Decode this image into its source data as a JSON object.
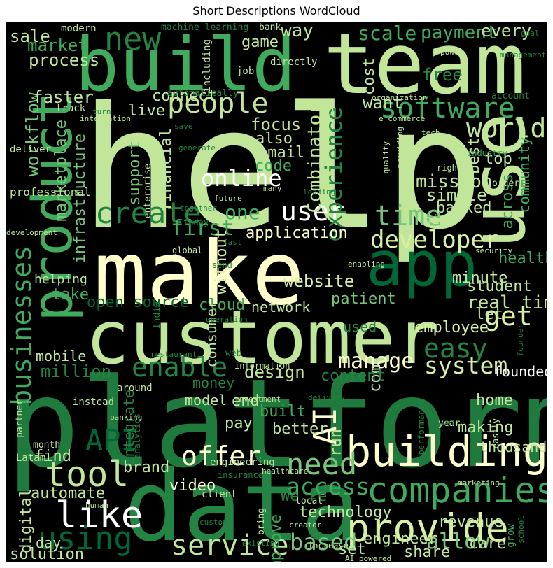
{
  "title": "Short Descriptions WordCloud",
  "colors": {
    "background": "#000000",
    "palette": [
      "#ffffcc",
      "#d9f0a3",
      "#addd8e",
      "#78c679",
      "#41ab5d",
      "#238443",
      "#005a32"
    ]
  },
  "words": [
    {
      "text": "help",
      "color": "#c2e699"
    },
    {
      "text": "platform",
      "color": "#1f7a3d"
    },
    {
      "text": "make",
      "color": "#ffffcc"
    },
    {
      "text": "customer",
      "color": "#c2e699"
    },
    {
      "text": "data",
      "color": "#238443"
    },
    {
      "text": "team",
      "color": "#c2e699"
    },
    {
      "text": "build",
      "color": "#41ab5d"
    },
    {
      "text": "product",
      "color": "#41ab5d"
    },
    {
      "text": "use",
      "color": "#c2e699"
    },
    {
      "text": "app",
      "color": "#006837"
    },
    {
      "text": "building",
      "color": "#ffffcc"
    },
    {
      "text": "provide",
      "color": "#d9f0a3"
    },
    {
      "text": "companies",
      "color": "#41ab5d"
    },
    {
      "text": "service",
      "color": "#c2e699"
    },
    {
      "text": "like",
      "color": "#ffffff"
    },
    {
      "text": "tool",
      "color": "#c2e699"
    },
    {
      "text": "using",
      "color": "#006837"
    },
    {
      "text": "offer",
      "color": "#ffffcc"
    },
    {
      "text": "need",
      "color": "#78c679"
    },
    {
      "text": "AI",
      "color": "#ffffcc"
    },
    {
      "text": "API",
      "color": "#006837"
    },
    {
      "text": "businesses",
      "color": "#41ab5d"
    },
    {
      "text": "software",
      "color": "#41ab5d"
    },
    {
      "text": "people",
      "color": "#c2e699"
    },
    {
      "text": "new",
      "color": "#238443"
    },
    {
      "text": "world",
      "color": "#c2e699"
    },
    {
      "text": "time",
      "color": "#78c679"
    },
    {
      "text": "user",
      "color": "#ffffff"
    },
    {
      "text": "online",
      "color": "#ffffff"
    },
    {
      "text": "create",
      "color": "#238443"
    },
    {
      "text": "developer",
      "color": "#d9f0a3"
    },
    {
      "text": "get",
      "color": "#d9f0a3"
    },
    {
      "text": "easy",
      "color": "#238443"
    },
    {
      "text": "enable",
      "color": "#238443"
    },
    {
      "text": "system",
      "color": "#d9f0a3"
    },
    {
      "text": "manage",
      "color": "#ffffcc"
    },
    {
      "text": "access",
      "color": "#41ab5d"
    },
    {
      "text": "based",
      "color": "#78c679"
    },
    {
      "text": "allow",
      "color": "#78c679"
    },
    {
      "text": "experience",
      "color": "#238443"
    },
    {
      "text": "Combinator",
      "color": "#c2e699"
    },
    {
      "text": "financial",
      "color": "#c2e699"
    },
    {
      "text": "infrastructure",
      "color": "#78c679"
    },
    {
      "text": "marketplace",
      "color": "#78c679"
    },
    {
      "text": "workflow",
      "color": "#78c679"
    },
    {
      "text": "support",
      "color": "#78c679"
    },
    {
      "text": "first",
      "color": "#41ab5d"
    },
    {
      "text": "one",
      "color": "#41ab5d"
    },
    {
      "text": "application",
      "color": "#ffffcc"
    },
    {
      "text": "website",
      "color": "#d9f0a3"
    },
    {
      "text": "without",
      "color": "#d9f0a3"
    },
    {
      "text": "student",
      "color": "#c2e699"
    },
    {
      "text": "real time",
      "color": "#c2e699"
    },
    {
      "text": "employee",
      "color": "#d9f0a3"
    },
    {
      "text": "patient",
      "color": "#78c679"
    },
    {
      "text": "network",
      "color": "#c2e699"
    },
    {
      "text": "cloud",
      "color": "#41ab5d"
    },
    {
      "text": "consumer",
      "color": "#c2e699"
    },
    {
      "text": "design",
      "color": "#c2e699"
    },
    {
      "text": "million",
      "color": "#238443"
    },
    {
      "text": "mobile",
      "color": "#c2e699"
    },
    {
      "text": "open source",
      "color": "#006837"
    },
    {
      "text": "take",
      "color": "#41ab5d"
    },
    {
      "text": "helping",
      "color": "#c2e699"
    },
    {
      "text": "video",
      "color": "#ffffcc"
    },
    {
      "text": "brand",
      "color": "#c2e699"
    },
    {
      "text": "find",
      "color": "#c2e699"
    },
    {
      "text": "automate",
      "color": "#c2e699"
    },
    {
      "text": "digital",
      "color": "#c2e699"
    },
    {
      "text": "day",
      "color": "#c2e699"
    },
    {
      "text": "solution",
      "color": "#c2e699"
    },
    {
      "text": "technology",
      "color": "#c2e699"
    },
    {
      "text": "improve",
      "color": "#41ab5d"
    },
    {
      "text": "We're",
      "color": "#238443"
    },
    {
      "text": "engineer",
      "color": "#c2e699"
    },
    {
      "text": "share",
      "color": "#c2e699"
    },
    {
      "text": "revenue",
      "color": "#c2e699"
    },
    {
      "text": "care",
      "color": "#c2e699"
    },
    {
      "text": "thousand",
      "color": "#c2e699"
    },
    {
      "text": "making",
      "color": "#c2e699"
    },
    {
      "text": "home",
      "color": "#c2e699"
    },
    {
      "text": "founded",
      "color": "#ffffff"
    },
    {
      "text": "let",
      "color": "#c2e699"
    },
    {
      "text": "health",
      "color": "#41ab5d"
    },
    {
      "text": "across",
      "color": "#41ab5d"
    },
    {
      "text": "community",
      "color": "#41ab5d"
    },
    {
      "text": "minute",
      "color": "#c2e699"
    },
    {
      "text": "backed",
      "color": "#c2e699"
    },
    {
      "text": "simple",
      "color": "#c2e699"
    },
    {
      "text": "mission",
      "color": "#c2e699"
    },
    {
      "text": "top",
      "color": "#c2e699"
    },
    {
      "text": "best",
      "color": "#c2e699"
    },
    {
      "text": "give",
      "color": "#c2e699"
    },
    {
      "text": "code",
      "color": "#41ab5d"
    },
    {
      "text": "email",
      "color": "#c2e699"
    },
    {
      "text": "also",
      "color": "#c2e699"
    },
    {
      "text": "focus",
      "color": "#c2e699"
    },
    {
      "text": "live",
      "color": "#c2e699"
    },
    {
      "text": "connect",
      "color": "#c2e699"
    },
    {
      "text": "faster",
      "color": "#c2e699"
    },
    {
      "text": "process",
      "color": "#c2e699"
    },
    {
      "text": "market",
      "color": "#41ab5d"
    },
    {
      "text": "sale",
      "color": "#c2e699"
    },
    {
      "text": "game",
      "color": "#c2e699"
    },
    {
      "text": "way",
      "color": "#c2e699"
    },
    {
      "text": "scale",
      "color": "#41ab5d"
    },
    {
      "text": "payment",
      "color": "#41ab5d"
    },
    {
      "text": "every",
      "color": "#c2e699"
    },
    {
      "text": "free",
      "color": "#238443"
    },
    {
      "text": "cost",
      "color": "#c2e699"
    },
    {
      "text": "want",
      "color": "#c2e699"
    },
    {
      "text": "u",
      "color": "#c2e699"
    },
    {
      "text": "end",
      "color": "#c2e699"
    },
    {
      "text": "built",
      "color": "#41ab5d"
    },
    {
      "text": "better",
      "color": "#c2e699"
    },
    {
      "text": "pay",
      "color": "#c2e699"
    },
    {
      "text": "run",
      "color": "#c2e699"
    },
    {
      "text": "set",
      "color": "#c2e699"
    },
    {
      "text": "com",
      "color": "#c2e699"
    },
    {
      "text": "content",
      "color": "#238443"
    },
    {
      "text": "used",
      "color": "#238443"
    },
    {
      "text": "model",
      "color": "#c2e699"
    },
    {
      "text": "money",
      "color": "#238443"
    },
    {
      "text": "integrate",
      "color": "#238443"
    },
    {
      "text": "engineering",
      "color": "#c2e699"
    },
    {
      "text": "professional",
      "color": "#c2e699"
    },
    {
      "text": "enterprise",
      "color": "#c2e699"
    },
    {
      "text": "deliver",
      "color": "#c2e699"
    },
    {
      "text": "track",
      "color": "#c2e699"
    },
    {
      "text": "job",
      "color": "#c2e699"
    },
    {
      "text": "directly",
      "color": "#c2e699"
    },
    {
      "text": "including",
      "color": "#c2e699"
    },
    {
      "text": "modern",
      "color": "#c2e699"
    },
    {
      "text": "machine learning",
      "color": "#238443"
    },
    {
      "text": "bank",
      "color": "#c2e699"
    },
    {
      "text": "goal",
      "color": "#238443"
    },
    {
      "text": "power",
      "color": "#c2e699"
    },
    {
      "text": "account",
      "color": "#238443"
    },
    {
      "text": "organization",
      "color": "#c2e699"
    },
    {
      "text": "automatically",
      "color": "#238443"
    },
    {
      "text": "integration",
      "color": "#c2e699"
    },
    {
      "text": "turn",
      "color": "#238443"
    },
    {
      "text": "save",
      "color": "#238443"
    },
    {
      "text": "generate",
      "color": "#238443"
    },
    {
      "text": "e commerce",
      "color": "#c2e699"
    },
    {
      "text": "providing",
      "color": "#c2e699"
    },
    {
      "text": "tech",
      "color": "#c2e699"
    },
    {
      "text": "quality",
      "color": "#c2e699"
    },
    {
      "text": "industry",
      "color": "#41ab5d"
    },
    {
      "text": "right",
      "color": "#c2e699"
    },
    {
      "text": "order",
      "color": "#c2e699"
    },
    {
      "text": "leading",
      "color": "#238443"
    },
    {
      "text": "many",
      "color": "#c2e699"
    },
    {
      "text": "future",
      "color": "#c2e699"
    },
    {
      "text": "together",
      "color": "#238443"
    },
    {
      "text": "today",
      "color": "#238443"
    },
    {
      "text": "development",
      "color": "#c2e699"
    },
    {
      "text": "fast",
      "color": "#238443"
    },
    {
      "text": "global",
      "color": "#c2e699"
    },
    {
      "text": "security",
      "color": "#c2e699"
    },
    {
      "text": "send",
      "color": "#238443"
    },
    {
      "text": "enabling",
      "color": "#c2e699"
    },
    {
      "text": "operation",
      "color": "#238443"
    },
    {
      "text": "India",
      "color": "#238443"
    },
    {
      "text": "web",
      "color": "#238443"
    },
    {
      "text": "information",
      "color": "#c2e699"
    },
    {
      "text": "restaurant",
      "color": "#238443"
    },
    {
      "text": "instead",
      "color": "#c2e699"
    },
    {
      "text": "around",
      "color": "#c2e699"
    },
    {
      "text": "investment",
      "color": "#c2e699"
    },
    {
      "text": "delivery",
      "color": "#238443"
    },
    {
      "text": "partner",
      "color": "#c2e699"
    },
    {
      "text": "banking",
      "color": "#c2e699"
    },
    {
      "text": "analytics",
      "color": "#238443"
    },
    {
      "text": "healthcare",
      "color": "#c2e699"
    },
    {
      "text": "performance",
      "color": "#238443"
    },
    {
      "text": "year",
      "color": "#c2e699"
    },
    {
      "text": "well",
      "color": "#238443"
    },
    {
      "text": "easily",
      "color": "#c2e699"
    },
    {
      "text": "founder",
      "color": "#238443"
    },
    {
      "text": "month",
      "color": "#c2e699"
    },
    {
      "text": "Latam",
      "color": "#c2e699"
    },
    {
      "text": "insurance",
      "color": "#238443"
    },
    {
      "text": "client",
      "color": "#c2e699"
    },
    {
      "text": "human",
      "color": "#c2e699"
    },
    {
      "text": "custom",
      "color": "#238443"
    },
    {
      "text": "existing",
      "color": "#238443"
    },
    {
      "text": "increase",
      "color": "#c2e699"
    },
    {
      "text": "AI powered",
      "color": "#c2e699"
    },
    {
      "text": "creator",
      "color": "#c2e699"
    },
    {
      "text": "bring",
      "color": "#c2e699"
    },
    {
      "text": "local",
      "color": "#c2e699"
    },
    {
      "text": "marketing",
      "color": "#c2e699"
    },
    {
      "text": "grow",
      "color": "#41ab5d"
    },
    {
      "text": "school",
      "color": "#238443"
    },
    {
      "text": "management",
      "color": "#238443"
    }
  ]
}
